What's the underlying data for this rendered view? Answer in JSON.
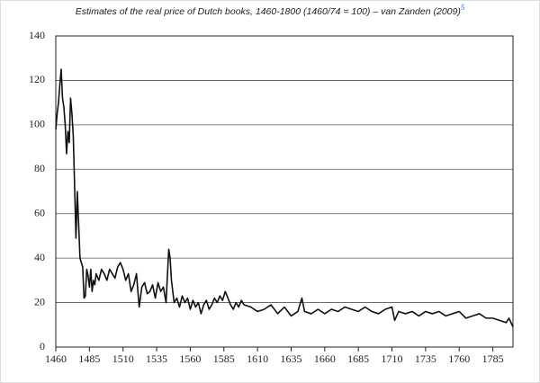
{
  "chart_data": {
    "type": "line",
    "title": "Estimates of the real price of Dutch books, 1460-1800 (1460/74 = 100) – van Zanden (2009)",
    "title_note": "5",
    "x": [
      1460,
      1461,
      1462,
      1463,
      1464,
      1465,
      1466,
      1467,
      1468,
      1469,
      1470,
      1471,
      1472,
      1473,
      1474,
      1475,
      1476,
      1477,
      1478,
      1479,
      1480,
      1481,
      1482,
      1483,
      1484,
      1485,
      1486,
      1487,
      1488,
      1489,
      1490,
      1492,
      1494,
      1496,
      1498,
      1500,
      1502,
      1504,
      1506,
      1508,
      1510,
      1512,
      1514,
      1516,
      1518,
      1520,
      1522,
      1524,
      1526,
      1528,
      1530,
      1532,
      1534,
      1536,
      1538,
      1540,
      1542,
      1544,
      1545,
      1546,
      1548,
      1550,
      1552,
      1554,
      1556,
      1558,
      1560,
      1562,
      1564,
      1566,
      1568,
      1570,
      1572,
      1574,
      1576,
      1578,
      1580,
      1582,
      1584,
      1586,
      1588,
      1590,
      1592,
      1594,
      1596,
      1598,
      1600,
      1605,
      1610,
      1615,
      1620,
      1625,
      1630,
      1635,
      1640,
      1643,
      1645,
      1650,
      1655,
      1660,
      1665,
      1670,
      1675,
      1680,
      1685,
      1690,
      1695,
      1700,
      1705,
      1710,
      1712,
      1715,
      1720,
      1725,
      1730,
      1735,
      1740,
      1745,
      1750,
      1755,
      1760,
      1765,
      1770,
      1775,
      1780,
      1785,
      1790,
      1795,
      1797,
      1800
    ],
    "series": [
      {
        "name": "Real price of Dutch books",
        "color": "#111111",
        "values": [
          98,
          105,
          110,
          118,
          125,
          112,
          108,
          100,
          87,
          97,
          92,
          112,
          105,
          95,
          72,
          49,
          70,
          55,
          40,
          38,
          36,
          22,
          23,
          35,
          32,
          27,
          35,
          25,
          30,
          28,
          33,
          30,
          35,
          33,
          30,
          35,
          33,
          31,
          36,
          38,
          35,
          30,
          33,
          25,
          28,
          33,
          18,
          27,
          29,
          24,
          25,
          28,
          22,
          29,
          25,
          27,
          20,
          44,
          40,
          30,
          20,
          22,
          18,
          23,
          20,
          22,
          17,
          21,
          18,
          20,
          15,
          19,
          21,
          17,
          19,
          22,
          20,
          23,
          21,
          25,
          22,
          19,
          17,
          20,
          18,
          21,
          19,
          18,
          16,
          17,
          19,
          15,
          18,
          14,
          16,
          22,
          16,
          15,
          17,
          15,
          17,
          16,
          18,
          17,
          16,
          18,
          16,
          15,
          17,
          18,
          12,
          16,
          15,
          16,
          14,
          16,
          15,
          16,
          14,
          15,
          16,
          13,
          14,
          15,
          13,
          13,
          12,
          11,
          13,
          9
        ]
      }
    ],
    "xlim": [
      1460,
      1800
    ],
    "xticks": [
      1460,
      1485,
      1510,
      1535,
      1560,
      1585,
      1610,
      1635,
      1660,
      1685,
      1710,
      1735,
      1760,
      1785
    ],
    "ylim": [
      0,
      140
    ],
    "yticks": [
      0,
      20,
      40,
      60,
      80,
      100,
      120,
      140
    ],
    "grid": true
  }
}
